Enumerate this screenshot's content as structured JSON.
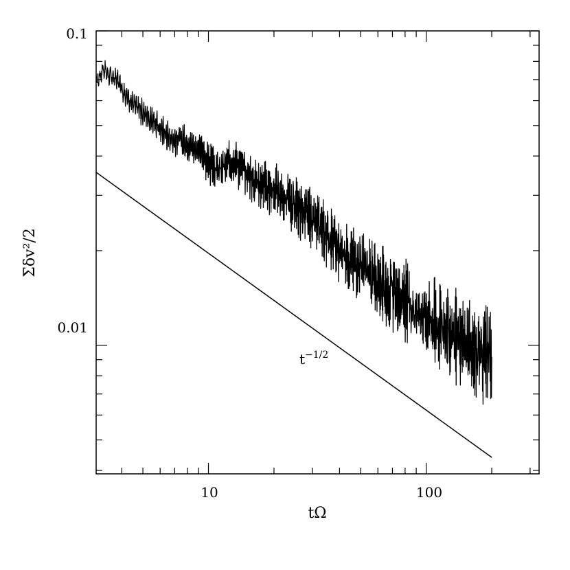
{
  "chart_data": {
    "type": "line",
    "xscale": "log",
    "yscale": "log",
    "xlim": [
      3.05,
      330
    ],
    "ylim": [
      0.0039,
      0.1
    ],
    "xlabel": "tΩ",
    "ylabel": "Σδv²/2",
    "x_tick_labels": [
      "10",
      "100"
    ],
    "y_tick_labels": [
      "0.1",
      "0.01"
    ],
    "grid": false,
    "series": [
      {
        "style": "noisy",
        "color": "#000000",
        "points": [
          [
            3.05,
            0.068
          ],
          [
            3.3,
            0.076
          ],
          [
            3.5,
            0.072
          ],
          [
            3.8,
            0.07
          ],
          [
            4.2,
            0.062
          ],
          [
            4.6,
            0.058
          ],
          [
            5.0,
            0.055
          ],
          [
            5.5,
            0.052
          ],
          [
            6.0,
            0.049
          ],
          [
            6.6,
            0.046
          ],
          [
            7.2,
            0.045
          ],
          [
            8.0,
            0.044
          ],
          [
            9.0,
            0.042
          ],
          [
            10.0,
            0.038
          ],
          [
            11.0,
            0.036
          ],
          [
            12.0,
            0.037
          ],
          [
            13.0,
            0.039
          ],
          [
            14.0,
            0.037
          ],
          [
            16.0,
            0.034
          ],
          [
            18.0,
            0.032
          ],
          [
            20.0,
            0.031
          ],
          [
            22.0,
            0.03
          ],
          [
            25.0,
            0.028
          ],
          [
            28.0,
            0.026
          ],
          [
            32.0,
            0.024
          ],
          [
            36.0,
            0.022
          ],
          [
            40.0,
            0.02
          ],
          [
            45.0,
            0.019
          ],
          [
            50.0,
            0.018
          ],
          [
            56.0,
            0.0165
          ],
          [
            63.0,
            0.0155
          ],
          [
            70.0,
            0.0148
          ],
          [
            80.0,
            0.0138
          ],
          [
            90.0,
            0.013
          ],
          [
            100.0,
            0.0125
          ],
          [
            112.0,
            0.0118
          ],
          [
            125.0,
            0.011
          ],
          [
            140.0,
            0.0105
          ],
          [
            160.0,
            0.0098
          ],
          [
            180.0,
            0.0095
          ],
          [
            200.0,
            0.009
          ]
        ]
      },
      {
        "style": "power-law",
        "color": "#000000",
        "points": [
          [
            3.05,
            0.0355
          ],
          [
            200.0,
            0.0044
          ]
        ]
      }
    ],
    "annotations": [
      {
        "text": "t",
        "superscript": "−1/2",
        "x": 40,
        "y": 0.0088
      }
    ]
  }
}
